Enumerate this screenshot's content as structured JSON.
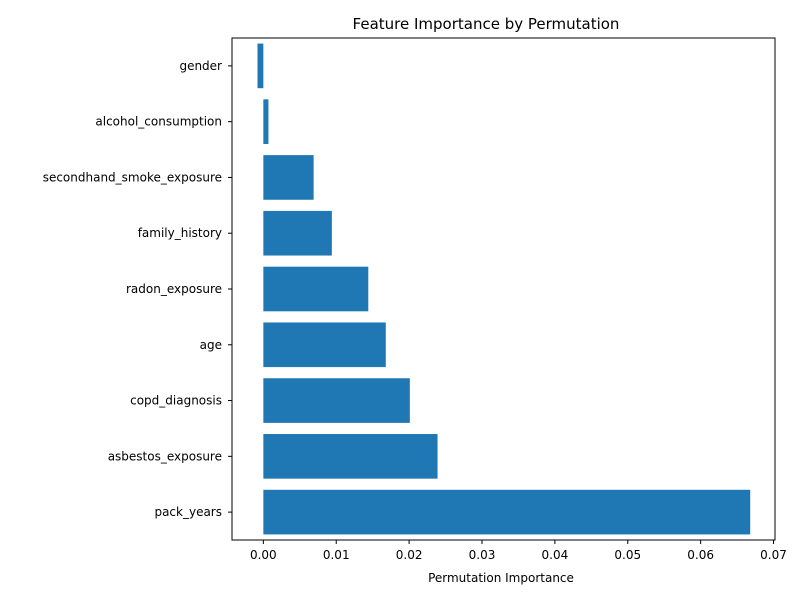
{
  "chart_data": {
    "type": "bar",
    "orientation": "horizontal",
    "title": "Feature Importance by Permutation",
    "xlabel": "Permutation Importance",
    "ylabel": "",
    "categories": [
      "gender",
      "alcohol_consumption",
      "secondhand_smoke_exposure",
      "family_history",
      "radon_exposure",
      "age",
      "copd_diagnosis",
      "asbestos_exposure",
      "pack_years"
    ],
    "values": [
      -0.0008,
      0.0007,
      0.0069,
      0.0094,
      0.0144,
      0.0168,
      0.0201,
      0.0239,
      0.0668
    ],
    "xlim": [
      -0.0043,
      0.0702
    ],
    "xticks": [
      0.0,
      0.01,
      0.02,
      0.03,
      0.04,
      0.05,
      0.06,
      0.07
    ],
    "xtick_labels": [
      "0.00",
      "0.01",
      "0.02",
      "0.03",
      "0.04",
      "0.05",
      "0.06",
      "0.07"
    ],
    "bar_color": "#1f77b4",
    "grid": false,
    "legend": "none"
  }
}
